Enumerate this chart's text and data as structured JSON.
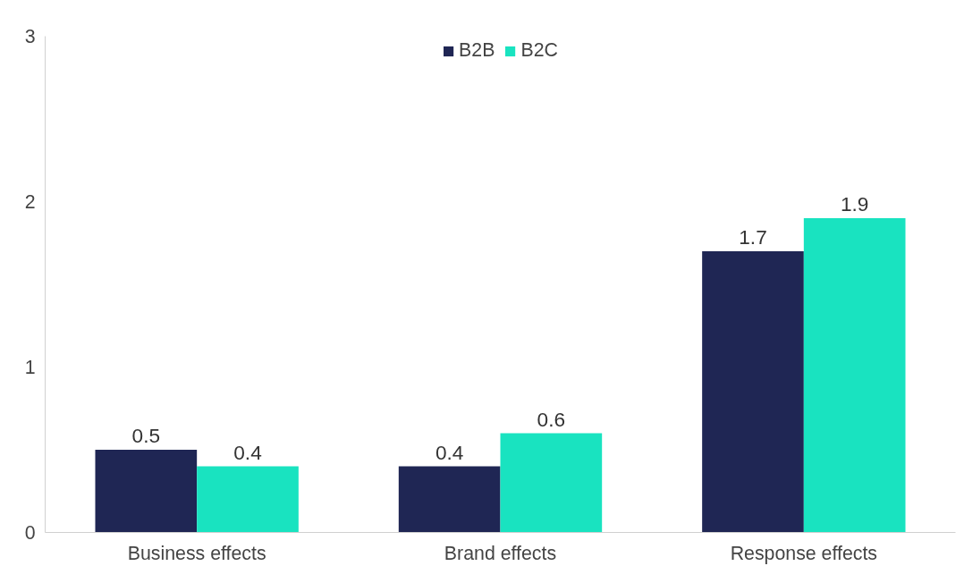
{
  "chart_data": {
    "type": "bar",
    "categories": [
      "Business effects",
      "Brand effects",
      "Response effects"
    ],
    "series": [
      {
        "name": "B2B",
        "color": "#1f2654",
        "values": [
          0.5,
          0.4,
          1.7
        ]
      },
      {
        "name": "B2C",
        "color": "#19e3c0",
        "values": [
          0.4,
          0.6,
          1.9
        ]
      }
    ],
    "ylim": [
      0,
      3
    ],
    "yticks": [
      0,
      1,
      2,
      3
    ],
    "grid": false,
    "legend": "top",
    "data_labels": true
  }
}
